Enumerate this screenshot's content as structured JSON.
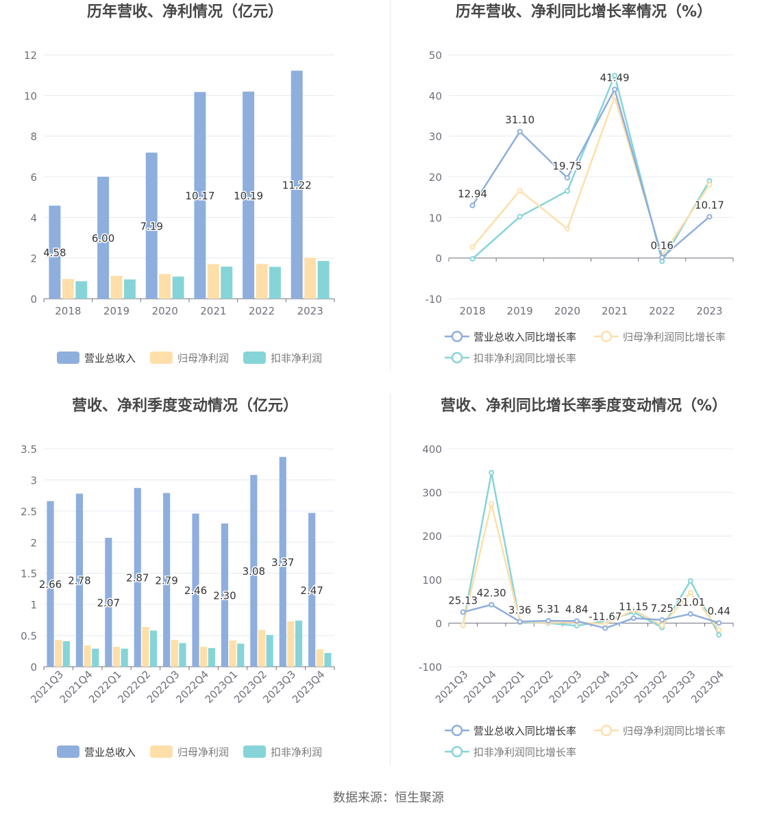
{
  "source_note": "数据来源：恒生聚源",
  "chart_data": [
    {
      "type": "bar",
      "title": "历年营收、净利情况（亿元）",
      "categories": [
        "2018",
        "2019",
        "2020",
        "2021",
        "2022",
        "2023"
      ],
      "y_ticks": [
        "0",
        "2",
        "4",
        "6",
        "8",
        "10",
        "12"
      ],
      "ylim": [
        0,
        12
      ],
      "series": [
        {
          "name": "营业总收入",
          "color": "#8eaedd",
          "values": [
            4.58,
            6.0,
            7.19,
            10.17,
            10.19,
            11.22
          ],
          "labels": [
            "4.58",
            "6.00",
            "7.19",
            "10.17",
            "10.19",
            "11.22"
          ]
        },
        {
          "name": "归母净利润",
          "color": "#fedfa9",
          "values": [
            0.97,
            1.13,
            1.22,
            1.7,
            1.71,
            2.02
          ]
        },
        {
          "name": "扣非净利润",
          "color": "#86d4d8",
          "values": [
            0.86,
            0.95,
            1.09,
            1.58,
            1.57,
            1.86
          ]
        }
      ],
      "legend": "bottom"
    },
    {
      "type": "line",
      "title": "历年营收、净利同比增长率情况（%）",
      "categories": [
        "2018",
        "2019",
        "2020",
        "2021",
        "2022",
        "2023"
      ],
      "y_ticks": [
        "-10",
        "0",
        "10",
        "20",
        "30",
        "40",
        "50"
      ],
      "ylim": [
        -10,
        50
      ],
      "series": [
        {
          "name": "营业总收入同比增长率",
          "color": "#8eaedd",
          "values": [
            12.94,
            31.1,
            19.75,
            41.49,
            0.16,
            10.17
          ],
          "labels": [
            "12.94",
            "31.10",
            "19.75",
            "41.49",
            "0.16",
            "10.17"
          ]
        },
        {
          "name": "归母净利润同比增长率",
          "color": "#fedfa9",
          "values": [
            2.7,
            16.6,
            7.2,
            39.7,
            0.6,
            18.0
          ]
        },
        {
          "name": "扣非净利润同比增长率",
          "color": "#86d4d8",
          "values": [
            -0.2,
            10.2,
            16.5,
            44.9,
            -0.8,
            19.0
          ]
        }
      ],
      "legend": "bottom"
    },
    {
      "type": "bar",
      "title": "营收、净利季度变动情况（亿元）",
      "categories": [
        "2021Q3",
        "2021Q4",
        "2022Q1",
        "2022Q2",
        "2022Q3",
        "2022Q4",
        "2023Q1",
        "2023Q2",
        "2023Q3",
        "2023Q4"
      ],
      "y_ticks": [
        "0",
        "0.5",
        "1",
        "1.5",
        "2",
        "2.5",
        "3",
        "3.5"
      ],
      "ylim": [
        0,
        3.5
      ],
      "series": [
        {
          "name": "营业总收入",
          "color": "#8eaedd",
          "values": [
            2.66,
            2.78,
            2.07,
            2.87,
            2.79,
            2.46,
            2.3,
            3.08,
            3.37,
            2.47
          ],
          "labels": [
            "2.66",
            "2.78",
            "2.07",
            "2.87",
            "2.79",
            "2.46",
            "2.30",
            "3.08",
            "3.37",
            "2.47"
          ]
        },
        {
          "name": "归母净利润",
          "color": "#fedfa9",
          "values": [
            0.43,
            0.34,
            0.32,
            0.64,
            0.43,
            0.32,
            0.42,
            0.59,
            0.73,
            0.28
          ]
        },
        {
          "name": "扣非净利润",
          "color": "#86d4d8",
          "values": [
            0.41,
            0.29,
            0.29,
            0.58,
            0.38,
            0.3,
            0.37,
            0.51,
            0.74,
            0.22
          ]
        }
      ],
      "legend": "bottom"
    },
    {
      "type": "line",
      "title": "营收、净利同比增长率季度变动情况（%）",
      "categories": [
        "2021Q3",
        "2021Q4",
        "2022Q1",
        "2022Q2",
        "2022Q3",
        "2022Q4",
        "2023Q1",
        "2023Q2",
        "2023Q3",
        "2023Q4"
      ],
      "y_ticks": [
        "-100",
        "0",
        "100",
        "200",
        "300",
        "400"
      ],
      "ylim": [
        -100,
        400
      ],
      "series": [
        {
          "name": "营业总收入同比增长率",
          "color": "#8eaedd",
          "values": [
            25.13,
            42.3,
            3.36,
            5.31,
            4.84,
            -11.67,
            11.15,
            7.25,
            21.01,
            0.44
          ],
          "labels": [
            "25.13",
            "42.30",
            "3.36",
            "5.31",
            "4.84",
            "-11.67",
            "11.15",
            "7.25",
            "21.01",
            "0.44"
          ]
        },
        {
          "name": "归母净利润同比增长率",
          "color": "#fedfa9",
          "values": [
            -5,
            274,
            3,
            1,
            2,
            -2,
            30,
            -5,
            70,
            -15
          ]
        },
        {
          "name": "扣非净利润同比增长率",
          "color": "#86d4d8",
          "values": [
            -5,
            345,
            2,
            0,
            -6,
            5,
            25,
            -10,
            97,
            -27
          ]
        }
      ],
      "legend": "bottom"
    }
  ]
}
